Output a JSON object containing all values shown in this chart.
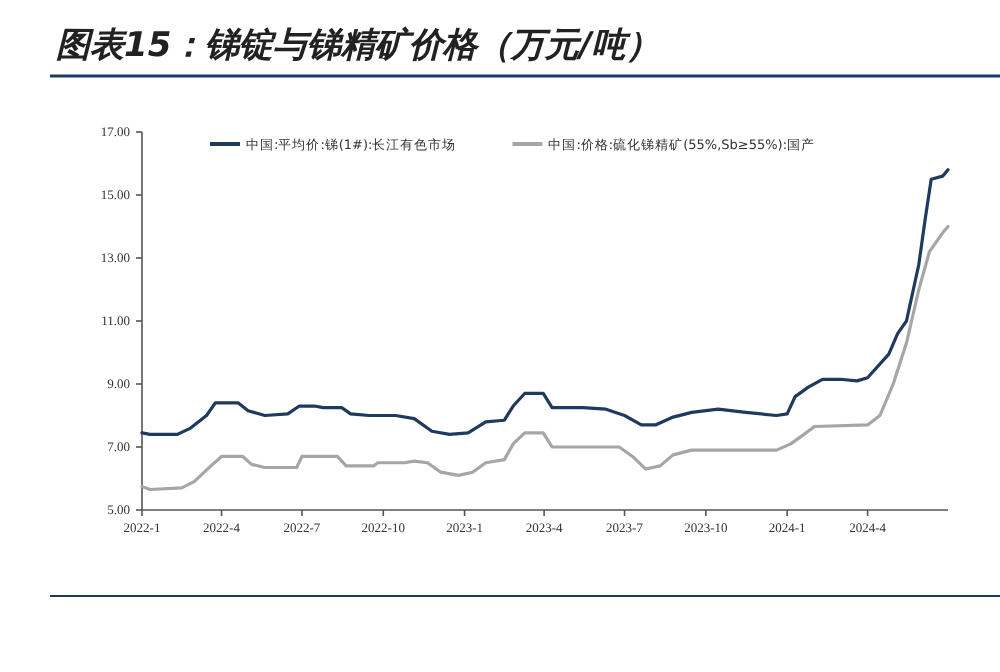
{
  "chart_data": {
    "type": "line",
    "title": "图表15：锑锭与锑精矿价格（万元/吨）",
    "xlim": [
      "2022-01-01",
      "2024-07-01"
    ],
    "xticks": [
      {
        "value": "2022-01-01",
        "label": "2022-1"
      },
      {
        "value": "2022-04-01",
        "label": "2022-4"
      },
      {
        "value": "2022-07-01",
        "label": "2022-7"
      },
      {
        "value": "2022-10-01",
        "label": "2022-10"
      },
      {
        "value": "2023-01-01",
        "label": "2023-1"
      },
      {
        "value": "2023-04-01",
        "label": "2023-4"
      },
      {
        "value": "2023-07-01",
        "label": "2023-7"
      },
      {
        "value": "2023-10-01",
        "label": "2023-10"
      },
      {
        "value": "2024-01-01",
        "label": "2024-1"
      },
      {
        "value": "2024-04-01",
        "label": "2024-4"
      }
    ],
    "ylim": [
      5,
      17
    ],
    "yticks": [
      {
        "value": 5,
        "label": "5.00"
      },
      {
        "value": 7,
        "label": "7.00"
      },
      {
        "value": 9,
        "label": "9.00"
      },
      {
        "value": 11,
        "label": "11.00"
      },
      {
        "value": 13,
        "label": "13.00"
      },
      {
        "value": 15,
        "label": "15.00"
      },
      {
        "value": 17,
        "label": "17.00"
      }
    ],
    "grid": false,
    "legend": "top",
    "marker": "none",
    "line_style": "solid",
    "series": [
      {
        "name": "中国:平均价:锑(1#):长江有色市场",
        "color": "#1f3a5f",
        "x": [
          "2022-01-01",
          "2022-01-10",
          "2022-02-10",
          "2022-02-25",
          "2022-03-15",
          "2022-03-25",
          "2022-04-20",
          "2022-05-01",
          "2022-05-20",
          "2022-06-15",
          "2022-06-28",
          "2022-07-15",
          "2022-07-25",
          "2022-08-15",
          "2022-08-25",
          "2022-09-15",
          "2022-10-15",
          "2022-11-05",
          "2022-11-25",
          "2022-12-15",
          "2023-01-05",
          "2023-01-25",
          "2023-02-15",
          "2023-02-25",
          "2023-03-10",
          "2023-03-31",
          "2023-04-10",
          "2023-05-15",
          "2023-06-10",
          "2023-07-01",
          "2023-07-20",
          "2023-08-05",
          "2023-08-25",
          "2023-09-15",
          "2023-10-15",
          "2023-11-15",
          "2023-12-20",
          "2024-01-01",
          "2024-01-10",
          "2024-01-25",
          "2024-02-10",
          "2024-03-01",
          "2024-03-20",
          "2024-04-01",
          "2024-04-25",
          "2024-05-05",
          "2024-05-15",
          "2024-05-29",
          "2024-06-05",
          "2024-06-12",
          "2024-06-25",
          "2024-07-01"
        ],
        "values": [
          7.45,
          7.4,
          7.4,
          7.6,
          8.0,
          8.4,
          8.4,
          8.15,
          8.0,
          8.05,
          8.3,
          8.3,
          8.25,
          8.25,
          8.05,
          8.0,
          8.0,
          7.9,
          7.5,
          7.4,
          7.45,
          7.8,
          7.85,
          8.3,
          8.7,
          8.7,
          8.25,
          8.25,
          8.2,
          8.0,
          7.7,
          7.7,
          7.95,
          8.1,
          8.2,
          8.1,
          8.0,
          8.05,
          8.6,
          8.9,
          9.15,
          9.15,
          9.1,
          9.2,
          9.95,
          10.6,
          11.0,
          12.8,
          14.2,
          15.5,
          15.6,
          15.8
        ]
      },
      {
        "name": "中国:价格:硫化锑精矿(55%,Sb≥55%):国产",
        "color": "#a6a6a6",
        "x": [
          "2022-01-01",
          "2022-01-10",
          "2022-02-15",
          "2022-03-01",
          "2022-03-20",
          "2022-04-01",
          "2022-04-25",
          "2022-05-05",
          "2022-05-20",
          "2022-06-25",
          "2022-07-01",
          "2022-08-10",
          "2022-08-20",
          "2022-09-20",
          "2022-09-25",
          "2022-10-25",
          "2022-11-05",
          "2022-11-20",
          "2022-12-05",
          "2022-12-25",
          "2023-01-10",
          "2023-01-25",
          "2023-02-15",
          "2023-02-25",
          "2023-03-10",
          "2023-03-31",
          "2023-04-10",
          "2023-06-25",
          "2023-07-10",
          "2023-07-25",
          "2023-08-10",
          "2023-08-25",
          "2023-09-15",
          "2023-12-20",
          "2024-01-05",
          "2024-01-20",
          "2024-02-01",
          "2024-04-01",
          "2024-04-15",
          "2024-04-30",
          "2024-05-15",
          "2024-05-29",
          "2024-06-10",
          "2024-06-25",
          "2024-07-01"
        ],
        "values": [
          5.75,
          5.65,
          5.7,
          5.9,
          6.4,
          6.7,
          6.7,
          6.45,
          6.35,
          6.35,
          6.7,
          6.7,
          6.4,
          6.4,
          6.5,
          6.5,
          6.55,
          6.5,
          6.2,
          6.1,
          6.2,
          6.5,
          6.6,
          7.1,
          7.45,
          7.45,
          7.0,
          7.0,
          6.7,
          6.3,
          6.4,
          6.75,
          6.9,
          6.9,
          7.1,
          7.4,
          7.65,
          7.7,
          8.0,
          9.0,
          10.3,
          12.0,
          13.2,
          13.8,
          14.0
        ]
      }
    ]
  }
}
